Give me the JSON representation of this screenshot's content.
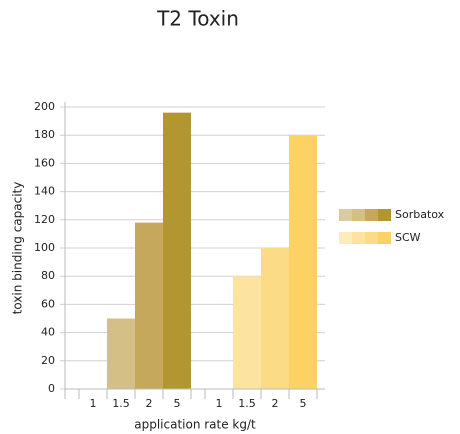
{
  "chart_data": {
    "type": "grouped-bar",
    "title": "T2 Toxin",
    "x_label": "application rate kg/t",
    "y_label": "toxin binding capacity",
    "categories": [
      "1",
      "1.5",
      "2",
      "5"
    ],
    "series": [
      {
        "name": "Sorbatox",
        "colors": [
          "#d9cca3",
          "#d4bf86",
          "#c5a85b",
          "#b3962f"
        ],
        "values": [
          0,
          50,
          118,
          196
        ]
      },
      {
        "name": "SCW",
        "colors": [
          "#fdebb8",
          "#fde3a0",
          "#fcdb86",
          "#fcd264"
        ],
        "values": [
          0,
          80,
          100,
          180
        ]
      }
    ],
    "ylim": [
      0,
      200
    ],
    "yticks": [
      0,
      20,
      40,
      60,
      80,
      100,
      120,
      140,
      160,
      180,
      200
    ],
    "grid": true
  }
}
